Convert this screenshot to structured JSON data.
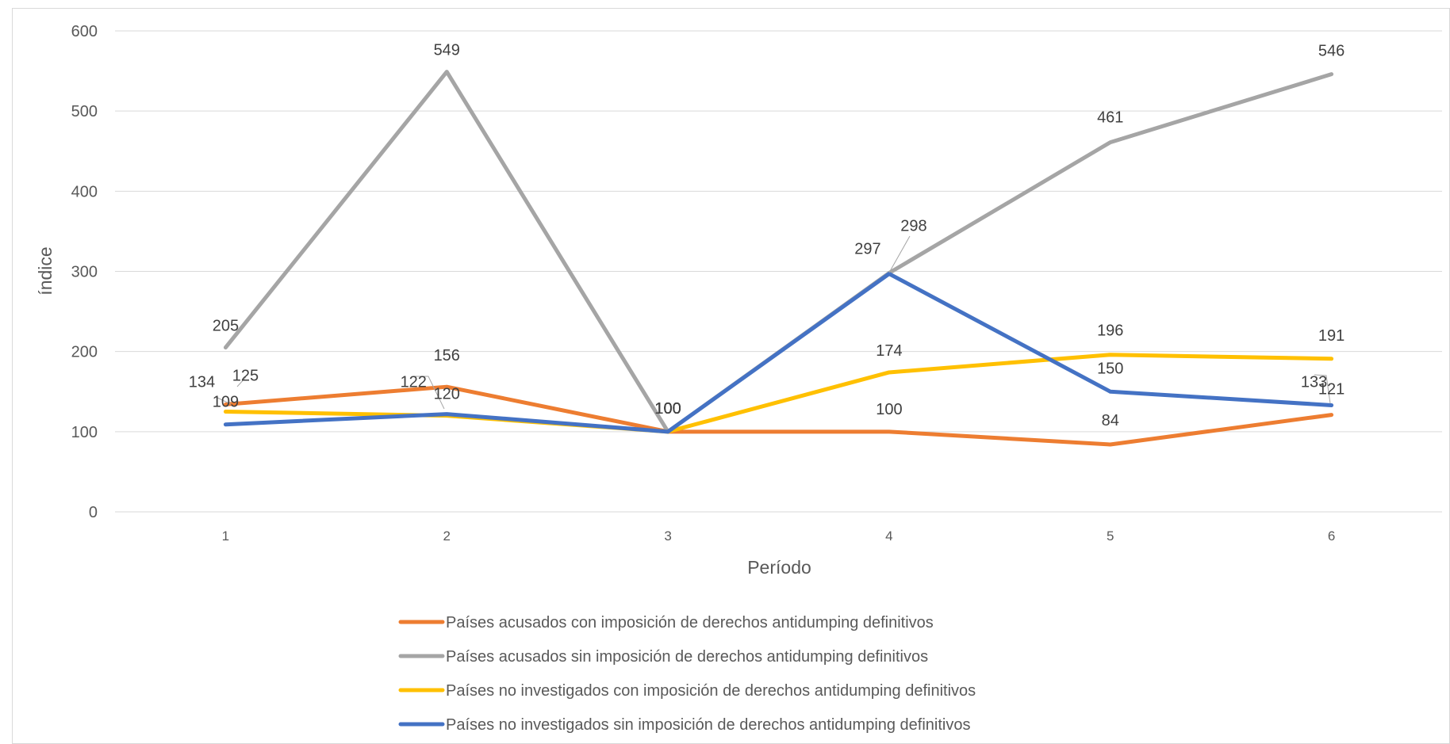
{
  "chart_data": {
    "type": "line",
    "title": "",
    "xlabel": "Período",
    "ylabel": "índice",
    "ylim": [
      0,
      600
    ],
    "yticks": [
      0,
      100,
      200,
      300,
      400,
      500,
      600
    ],
    "categories": [
      "1",
      "2",
      "3",
      "4",
      "5",
      "6"
    ],
    "grid": true,
    "legend_position": "bottom",
    "series": [
      {
        "name": "Países acusados con imposición de derechos antidumping definitivos",
        "color": "#ED7D31",
        "values": [
          134,
          156,
          100,
          100,
          84,
          121
        ]
      },
      {
        "name": "Países acusados sin imposición de derechos antidumping definitivos",
        "color": "#A5A5A5",
        "values": [
          205,
          549,
          100,
          298,
          461,
          546
        ]
      },
      {
        "name": "Países no investigados con imposición de derechos antidumping definitivos",
        "color": "#FFC000",
        "values": [
          125,
          120,
          100,
          174,
          196,
          191
        ]
      },
      {
        "name": "Países no investigados sin imposición de derechos antidumping definitivos",
        "color": "#4472C4",
        "values": [
          109,
          122,
          100,
          297,
          150,
          133
        ]
      }
    ]
  }
}
